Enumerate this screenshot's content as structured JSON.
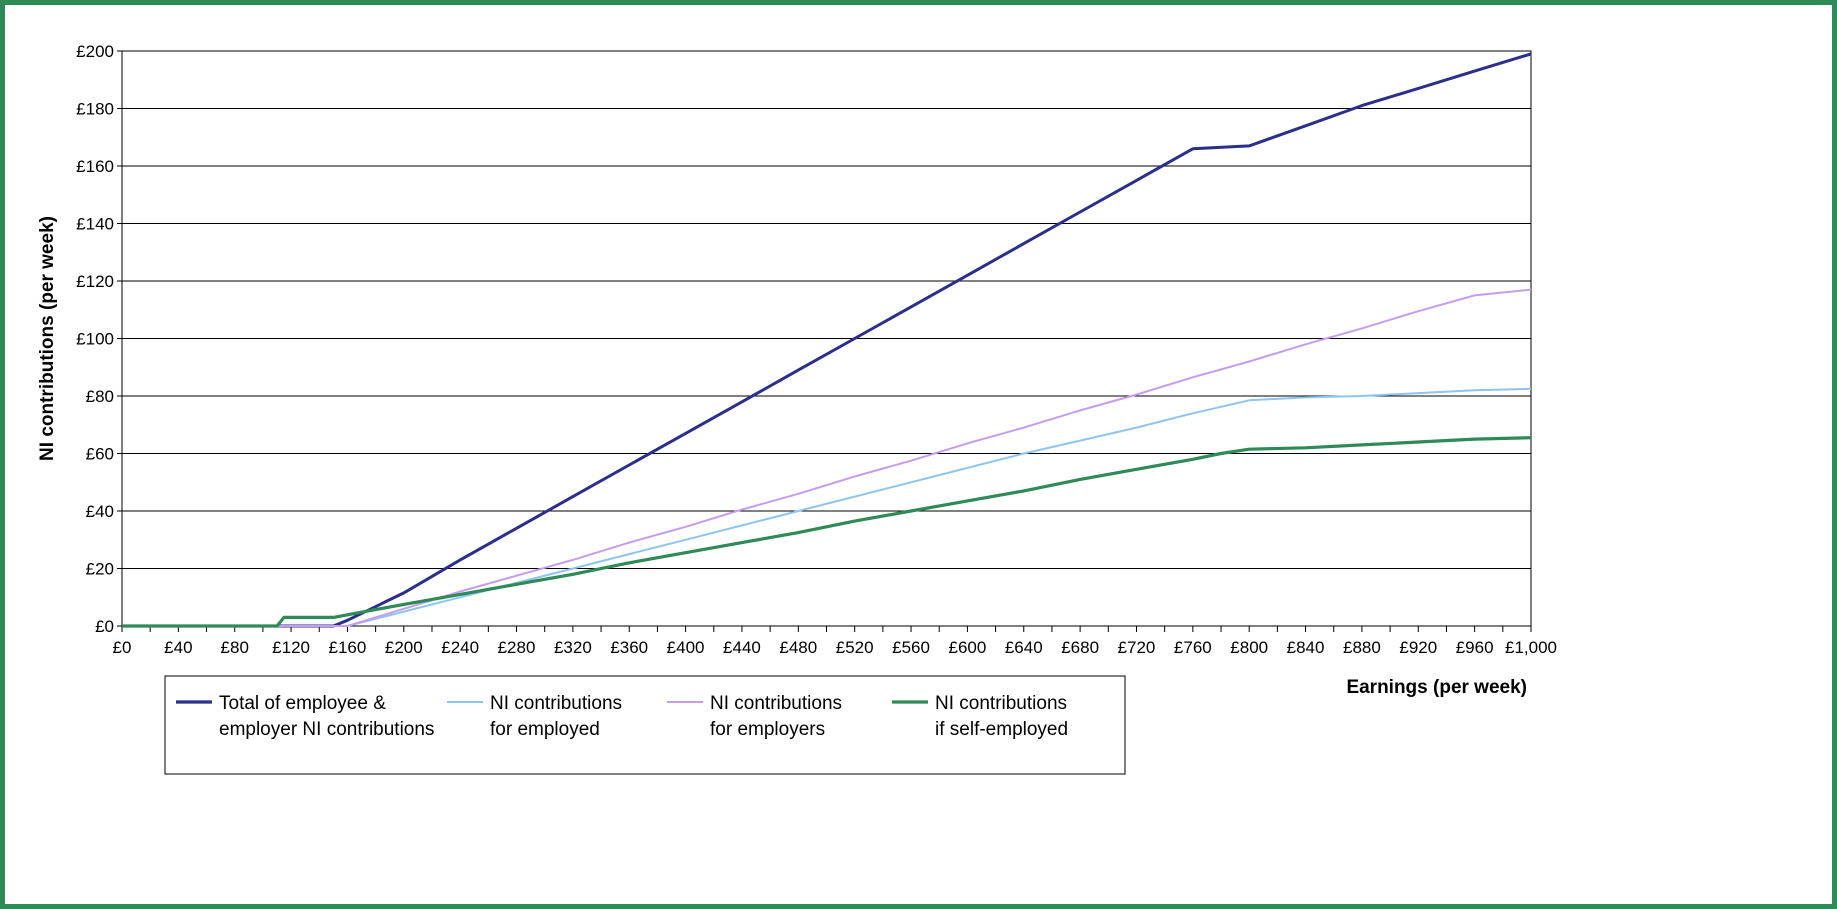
{
  "chart_data": {
    "type": "line",
    "title": "",
    "xlabel": "Earnings (per week)",
    "ylabel": "NI contributions (per week)",
    "xlim": [
      0,
      1000
    ],
    "ylim": [
      0,
      200
    ],
    "grid": true,
    "legend_position": "bottom-left",
    "x_tick_labels": [
      "£0",
      "£40",
      "£80",
      "£120",
      "£160",
      "£200",
      "£240",
      "£280",
      "£320",
      "£360",
      "£400",
      "£440",
      "£480",
      "£520",
      "£560",
      "£600",
      "£640",
      "£680",
      "£720",
      "£760",
      "£800",
      "£840",
      "£880",
      "£920",
      "£960",
      "£1,000"
    ],
    "x_tick_values": [
      0,
      40,
      80,
      120,
      160,
      200,
      240,
      280,
      320,
      360,
      400,
      440,
      480,
      520,
      560,
      600,
      640,
      680,
      720,
      760,
      800,
      840,
      880,
      920,
      960,
      1000
    ],
    "y_tick_labels": [
      "£0",
      "£20",
      "£40",
      "£60",
      "£80",
      "£100",
      "£120",
      "£140",
      "£160",
      "£180",
      "£200"
    ],
    "y_tick_values": [
      0,
      20,
      40,
      60,
      80,
      100,
      120,
      140,
      160,
      180,
      200
    ],
    "series": [
      {
        "name": "Total of employee & employer NI contributions",
        "legend_lines": [
          "Total of employee &",
          "employer NI contributions"
        ],
        "color": "#2b2f8c",
        "x": [
          0,
          110,
          150,
          160,
          200,
          240,
          280,
          320,
          360,
          400,
          440,
          480,
          520,
          560,
          600,
          640,
          680,
          720,
          760,
          800,
          840,
          880,
          920,
          960,
          1000
        ],
        "y": [
          0,
          0,
          0,
          2,
          11.5,
          23,
          34,
          45,
          56,
          67,
          78,
          89,
          100,
          111,
          122,
          133,
          144,
          155,
          166,
          167,
          174,
          181,
          187,
          193,
          199
        ]
      },
      {
        "name": "NI contributions for employed",
        "legend_lines": [
          "NI contributions",
          "for employed"
        ],
        "color": "#8fc4f0",
        "x": [
          0,
          110,
          160,
          200,
          240,
          280,
          320,
          360,
          400,
          440,
          480,
          520,
          560,
          600,
          640,
          680,
          720,
          760,
          800,
          840,
          880,
          920,
          960,
          1000
        ],
        "y": [
          0,
          0,
          0,
          5,
          10,
          15,
          20,
          25,
          30,
          35,
          40,
          45,
          50,
          55,
          60,
          64.5,
          69,
          74,
          78.5,
          79.5,
          80,
          81,
          82,
          82.5
        ]
      },
      {
        "name": "NI contributions for employers",
        "legend_lines": [
          "NI contributions",
          "for employers"
        ],
        "color": "#c79cf0",
        "x": [
          0,
          110,
          160,
          200,
          240,
          280,
          320,
          360,
          400,
          440,
          480,
          520,
          560,
          600,
          640,
          680,
          720,
          760,
          800,
          840,
          880,
          920,
          960,
          1000
        ],
        "y": [
          0,
          0,
          0,
          6,
          12,
          17.5,
          23,
          29,
          34.5,
          40.5,
          46,
          52,
          57.5,
          63.5,
          69,
          75,
          80.5,
          86.5,
          92,
          98,
          103.5,
          109.5,
          115,
          117
        ]
      },
      {
        "name": "NI contributions if self-employed",
        "legend_lines": [
          "NI contributions",
          "if self-employed"
        ],
        "color": "#2e8b57",
        "x": [
          0,
          110,
          115,
          150,
          200,
          240,
          280,
          320,
          360,
          400,
          440,
          480,
          520,
          560,
          600,
          640,
          680,
          720,
          760,
          780,
          800,
          840,
          880,
          920,
          960,
          1000
        ],
        "y": [
          0,
          0,
          3,
          3,
          7.5,
          11,
          14.5,
          18,
          22,
          25.5,
          29,
          32.5,
          36.5,
          40,
          43.5,
          47,
          51,
          54.5,
          58,
          60,
          61.5,
          62,
          63,
          64,
          65,
          65.5
        ]
      }
    ]
  }
}
